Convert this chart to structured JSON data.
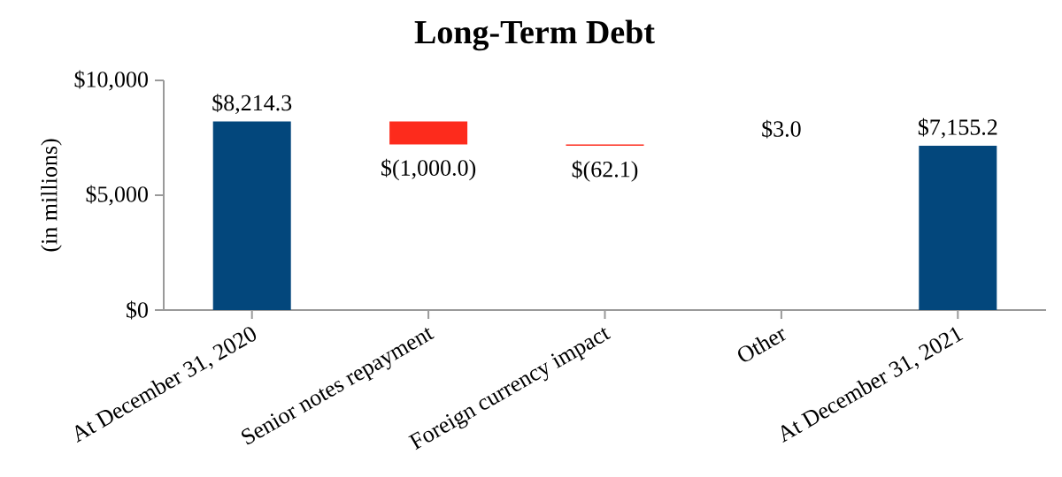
{
  "chart_data": {
    "type": "bar",
    "title": "Long-Term Debt",
    "ylabel": "(in millions)",
    "categories": [
      "At December 31, 2020",
      "Senior notes repayment",
      "Foreign currency impact",
      "Other",
      "At December 31, 2021"
    ],
    "values": [
      8214.3,
      -1000.0,
      -62.1,
      3.0,
      7155.2
    ],
    "base": [
      0,
      8214.3,
      7214.3,
      7152.2,
      0
    ],
    "colors": [
      "#03477c",
      "#fd2b1c",
      "#fd2b1c",
      "#2e9e44",
      "#03477c"
    ],
    "value_labels": [
      "$8,214.3",
      "$(1,000.0)",
      "$(62.1)",
      "$3.0",
      "$7,155.2"
    ],
    "ylim": [
      0,
      10000
    ],
    "yticks": [
      {
        "value": 0,
        "label": "$0"
      },
      {
        "value": 5000,
        "label": "$5,000"
      },
      {
        "value": 10000,
        "label": "$10,000"
      }
    ]
  }
}
